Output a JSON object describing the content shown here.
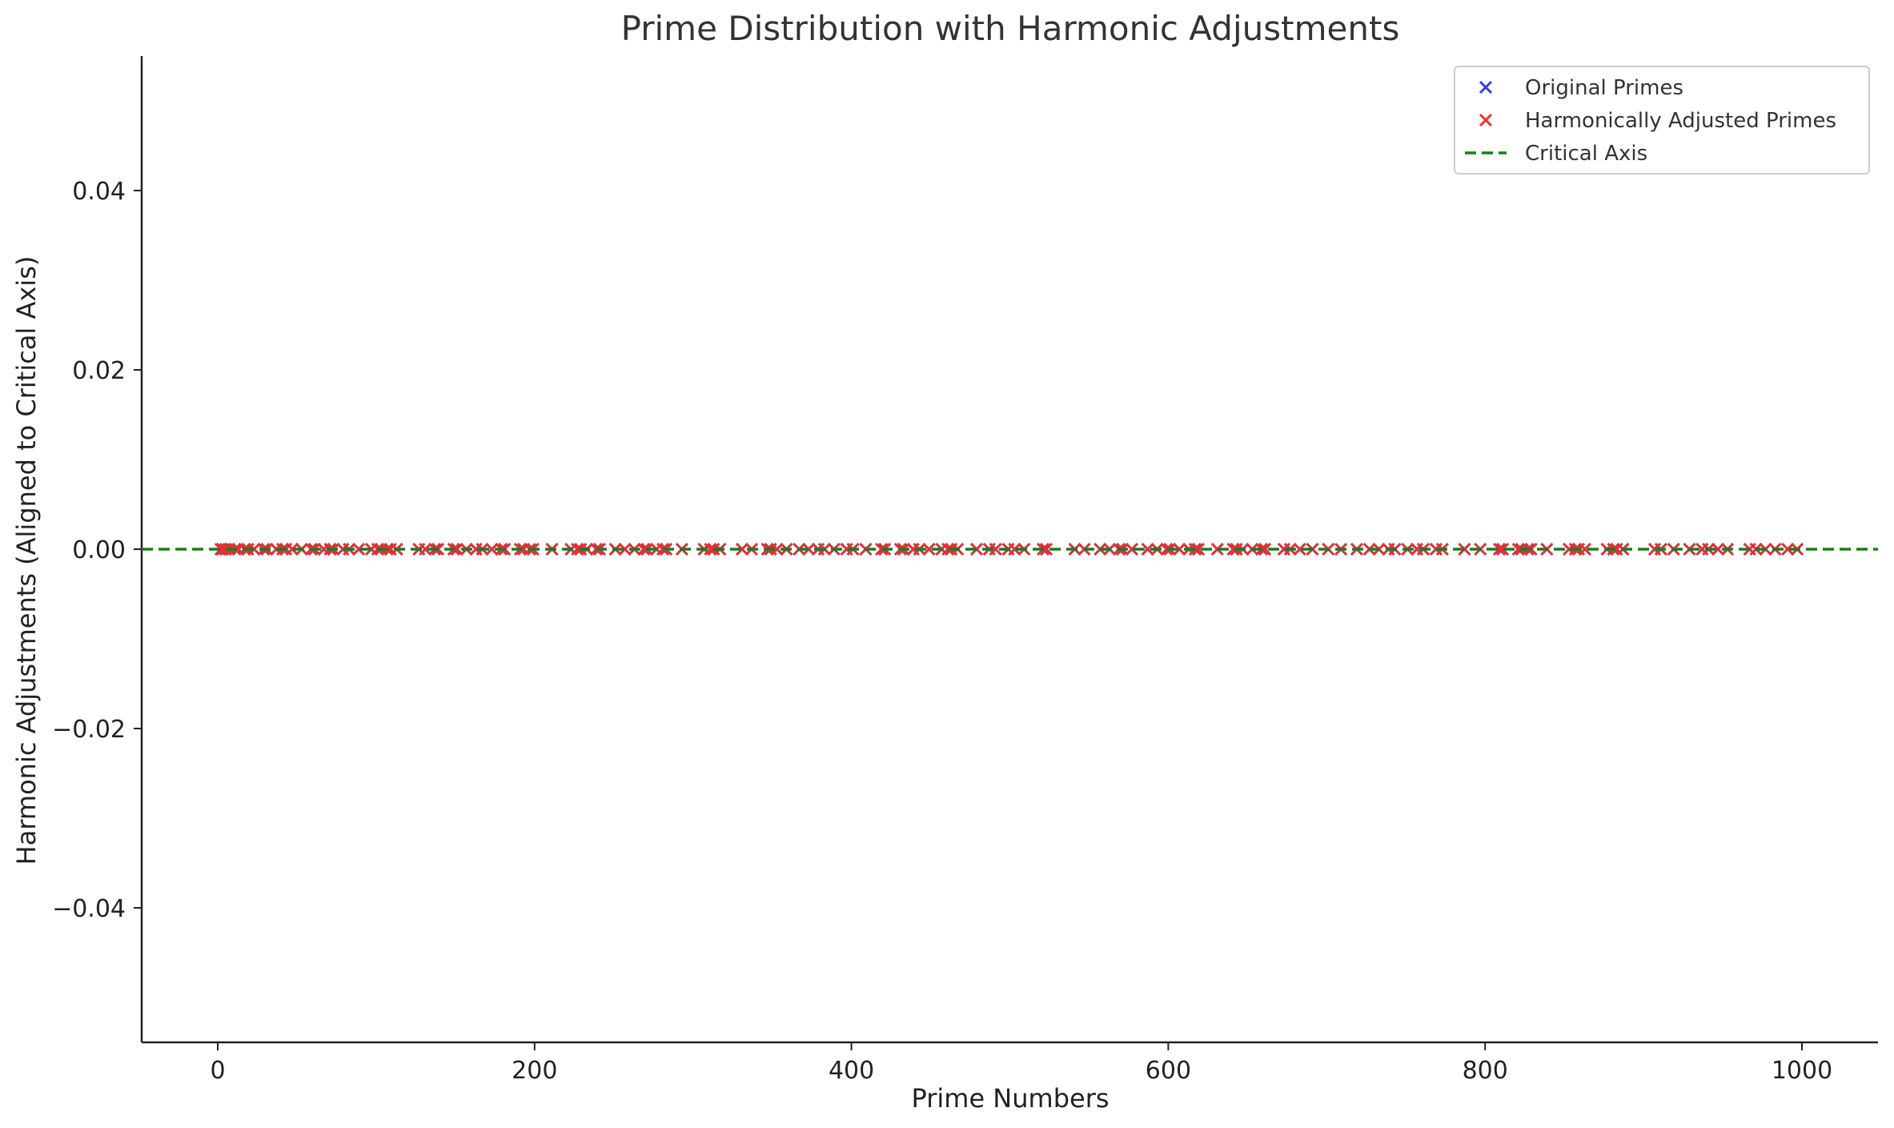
{
  "chart_data": {
    "type": "scatter",
    "title": "Prime Distribution with Harmonic Adjustments",
    "xlabel": "Prime Numbers",
    "ylabel": "Harmonic Adjustments (Aligned to Critical Axis)",
    "xlim": [
      -48,
      1048
    ],
    "ylim": [
      -0.055,
      0.055
    ],
    "x_ticks": [
      0,
      200,
      400,
      600,
      800,
      1000
    ],
    "x_tick_labels": [
      "0",
      "200",
      "400",
      "600",
      "800",
      "1000"
    ],
    "y_ticks": [
      -0.04,
      -0.02,
      0.0,
      0.02,
      0.04
    ],
    "y_tick_labels": [
      "−0.04",
      "−0.02",
      "0.00",
      "0.02",
      "0.04"
    ],
    "grid": false,
    "legend_position": "top-right",
    "x": [
      2,
      3,
      5,
      7,
      11,
      13,
      17,
      19,
      23,
      29,
      31,
      37,
      41,
      43,
      47,
      53,
      59,
      61,
      67,
      71,
      73,
      79,
      83,
      89,
      97,
      101,
      103,
      107,
      109,
      113,
      127,
      131,
      137,
      139,
      149,
      151,
      157,
      163,
      167,
      173,
      179,
      181,
      191,
      193,
      197,
      199,
      211,
      223,
      227,
      229,
      233,
      239,
      241,
      251,
      257,
      263,
      269,
      271,
      277,
      281,
      283,
      293,
      307,
      311,
      313,
      317,
      331,
      337,
      347,
      349,
      353,
      359,
      367,
      373,
      379,
      383,
      389,
      397,
      401,
      409,
      419,
      421,
      431,
      433,
      439,
      443,
      449,
      457,
      461,
      463,
      467,
      479,
      487,
      491,
      499,
      503,
      509,
      521,
      523,
      541,
      547,
      557,
      563,
      569,
      571,
      577,
      587,
      593,
      599,
      601,
      607,
      613,
      617,
      619,
      631,
      641,
      643,
      647,
      653,
      659,
      661,
      673,
      677,
      683,
      691,
      701,
      709,
      719,
      727,
      733,
      739,
      743,
      751,
      757,
      761,
      769,
      773,
      787,
      797,
      809,
      811,
      821,
      823,
      827,
      829,
      839,
      853,
      857,
      859,
      863,
      877,
      881,
      883,
      887,
      907,
      911,
      919,
      929,
      937,
      941,
      947,
      953,
      967,
      971,
      977,
      983,
      991,
      997
    ],
    "series": [
      {
        "name": "Original Primes",
        "marker": "x",
        "color": "#3b3bd9",
        "y_value": 0.0
      },
      {
        "name": "Harmonically Adjusted Primes",
        "marker": "x",
        "color": "#e8312f",
        "y_value": 0.0
      },
      {
        "name": "Critical Axis",
        "style": "dashed-line",
        "color": "#1a7f1a",
        "y_value": 0.0
      }
    ]
  }
}
